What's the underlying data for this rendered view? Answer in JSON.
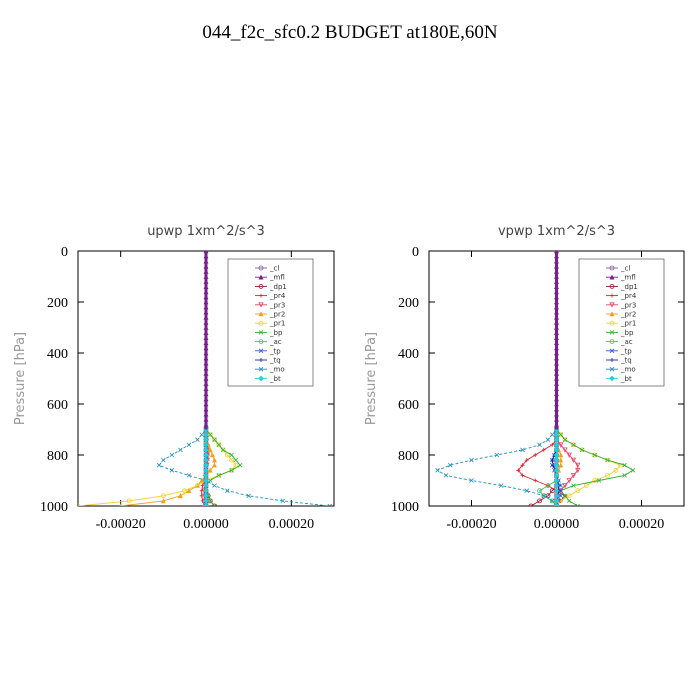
{
  "title": "044_f2c_sfc0.2  BUDGET at180E,60N",
  "series_styles": [
    {
      "name": "_cl",
      "color": "#8a5a9e",
      "marker": "circle"
    },
    {
      "name": "_mfl",
      "color": "#7a1f8f",
      "marker": "tri"
    },
    {
      "name": "_dp1",
      "color": "#a01030",
      "marker": "circle"
    },
    {
      "name": "_pr4",
      "color": "#e0202a",
      "marker": "plus"
    },
    {
      "name": "_pr3",
      "color": "#ee4466",
      "marker": "tridown"
    },
    {
      "name": "_pr2",
      "color": "#f0a020",
      "marker": "tri"
    },
    {
      "name": "_pr1",
      "color": "#f3d030",
      "marker": "circle"
    },
    {
      "name": "_bp",
      "color": "#30b030",
      "marker": "x"
    },
    {
      "name": "_ac",
      "color": "#40c060",
      "marker": "circle"
    },
    {
      "name": "_tp",
      "color": "#3060d0",
      "marker": "x"
    },
    {
      "name": "_tq",
      "color": "#2020a0",
      "marker": "plus"
    },
    {
      "name": "_mo",
      "color": "#2090c0",
      "marker": "x"
    },
    {
      "name": "_bt",
      "color": "#20d0e0",
      "marker": "diamond"
    }
  ],
  "chart_data": [
    {
      "type": "line",
      "title": "upwp   1xm^2/s^3",
      "ylabel": "Pressure [hPa]",
      "xlabel": "",
      "xlim": [
        -0.0003,
        0.0003
      ],
      "ylim": [
        1000,
        0
      ],
      "xticks": [
        -0.0002,
        0.0,
        0.0002
      ],
      "xtick_labels": [
        "-0.00020",
        "0.00000",
        "0.00020"
      ],
      "yticks": [
        0,
        200,
        400,
        600,
        800,
        1000
      ],
      "ytick_labels": [
        "0",
        "200",
        "400",
        "600",
        "800",
        "1000"
      ],
      "legend_position": "top-right",
      "y": [
        700,
        720,
        740,
        760,
        780,
        800,
        820,
        840,
        860,
        880,
        900,
        920,
        940,
        960,
        980,
        1000
      ],
      "series": [
        {
          "name": "_cl",
          "values": [
            0,
            0,
            0,
            0,
            0,
            0,
            0,
            0,
            0,
            0,
            0,
            0,
            0,
            0,
            0,
            0
          ]
        },
        {
          "name": "_mfl",
          "values": [
            0,
            0,
            0,
            0,
            0,
            0,
            0,
            0,
            0,
            0,
            0,
            0,
            0,
            0,
            0,
            0
          ]
        },
        {
          "name": "_dp1",
          "values": [
            0,
            0,
            0,
            0,
            0,
            0,
            0,
            0,
            0,
            0,
            0,
            0,
            0,
            5e-06,
            1e-05,
            2e-05
          ]
        },
        {
          "name": "_pr4",
          "values": [
            0,
            0,
            2e-06,
            4e-06,
            5e-06,
            5e-06,
            4e-06,
            2e-06,
            0,
            -3e-06,
            -5e-06,
            -8e-06,
            -1e-05,
            -1e-05,
            -8e-06,
            -4e-06
          ]
        },
        {
          "name": "_pr3",
          "values": [
            0,
            0,
            0,
            0,
            2e-06,
            3e-06,
            3e-06,
            2e-06,
            0,
            0,
            -2e-06,
            -3e-06,
            -4e-06,
            -3e-06,
            -2e-06,
            0
          ]
        },
        {
          "name": "_pr2",
          "values": [
            0,
            0,
            0,
            5e-06,
            1e-05,
            1.5e-05,
            2e-05,
            2e-05,
            1e-05,
            0,
            -1e-05,
            -2e-05,
            -4e-05,
            -6e-05,
            -0.0001,
            -0.0002
          ]
        },
        {
          "name": "_pr1",
          "values": [
            0,
            1e-05,
            2e-05,
            3e-05,
            4e-05,
            5e-05,
            6e-05,
            7e-05,
            6e-05,
            3e-05,
            0,
            -2e-05,
            -5e-05,
            -0.0001,
            -0.00018,
            -0.0003
          ]
        },
        {
          "name": "_bp",
          "values": [
            0,
            1e-05,
            2e-05,
            3e-05,
            4e-05,
            6e-05,
            7e-05,
            8e-05,
            6e-05,
            3e-05,
            1e-05,
            0,
            0,
            5e-06,
            1e-05,
            2e-05
          ]
        },
        {
          "name": "_ac",
          "values": [
            0,
            0,
            0,
            0,
            0,
            0,
            0,
            0,
            0,
            0,
            0,
            0,
            0,
            0,
            0,
            0
          ]
        },
        {
          "name": "_tp",
          "values": [
            0,
            0,
            0,
            0,
            0,
            0,
            0,
            0,
            0,
            0,
            0,
            0,
            0,
            0,
            0,
            0
          ]
        },
        {
          "name": "_tq",
          "values": [
            0,
            0,
            0,
            0,
            0,
            0,
            0,
            0,
            0,
            0,
            0,
            0,
            0,
            0,
            0,
            0
          ]
        },
        {
          "name": "_mo",
          "values": [
            0,
            -1e-05,
            -2e-05,
            -4e-05,
            -6e-05,
            -8e-05,
            -0.0001,
            -0.00011,
            -8e-05,
            -4e-05,
            0,
            2e-05,
            5e-05,
            0.0001,
            0.00018,
            0.00029
          ]
        },
        {
          "name": "_bt",
          "values": [
            0,
            0,
            0,
            0,
            0,
            0,
            0,
            0,
            0,
            0,
            0,
            0,
            0,
            0,
            0,
            0
          ]
        }
      ]
    },
    {
      "type": "line",
      "title": "vpwp   1xm^2/s^3",
      "ylabel": "Pressure [hPa]",
      "xlabel": "",
      "xlim": [
        -0.0003,
        0.0003
      ],
      "ylim": [
        1000,
        0
      ],
      "xticks": [
        -0.0002,
        0.0,
        0.0002
      ],
      "xtick_labels": [
        "-0.00020",
        "0.00000",
        "0.00020"
      ],
      "yticks": [
        0,
        200,
        400,
        600,
        800,
        1000
      ],
      "ytick_labels": [
        "0",
        "200",
        "400",
        "600",
        "800",
        "1000"
      ],
      "legend_position": "top-right",
      "y": [
        700,
        720,
        740,
        760,
        780,
        800,
        820,
        840,
        860,
        880,
        900,
        920,
        940,
        960,
        980,
        1000
      ],
      "series": [
        {
          "name": "_cl",
          "values": [
            0,
            0,
            0,
            0,
            0,
            0,
            0,
            0,
            0,
            0,
            0,
            0,
            0,
            0,
            0,
            0
          ]
        },
        {
          "name": "_mfl",
          "values": [
            0,
            0,
            0,
            0,
            0,
            0,
            0,
            0,
            0,
            0,
            0,
            0,
            0,
            0,
            0,
            0
          ]
        },
        {
          "name": "_dp1",
          "values": [
            0,
            0,
            0,
            0,
            0,
            0,
            0,
            0,
            0,
            0,
            0,
            0,
            -1e-05,
            -2e-05,
            -4e-05,
            -6e-05
          ]
        },
        {
          "name": "_pr4",
          "values": [
            0,
            0,
            0,
            -1e-05,
            -3e-05,
            -5e-05,
            -7e-05,
            -8e-05,
            -9e-05,
            -8e-05,
            -5e-05,
            -2e-05,
            0,
            2e-05,
            1e-05,
            0
          ]
        },
        {
          "name": "_pr3",
          "values": [
            0,
            0,
            0,
            1e-05,
            2e-05,
            3e-05,
            4e-05,
            5e-05,
            5e-05,
            4e-05,
            3e-05,
            2e-05,
            1e-05,
            0,
            0,
            0
          ]
        },
        {
          "name": "_pr2",
          "values": [
            0,
            0,
            0,
            0,
            5e-06,
            1e-05,
            1e-05,
            1e-05,
            5e-06,
            0,
            0,
            0,
            0,
            0,
            0,
            0
          ]
        },
        {
          "name": "_pr1",
          "values": [
            0,
            1e-05,
            2e-05,
            4e-05,
            6e-05,
            9e-05,
            0.00012,
            0.00015,
            0.00014,
            0.00012,
            9e-05,
            7e-05,
            5e-05,
            3e-05,
            1e-05,
            0
          ]
        },
        {
          "name": "_bp",
          "values": [
            0,
            1e-05,
            2e-05,
            4e-05,
            6e-05,
            9e-05,
            0.00012,
            0.00016,
            0.00018,
            0.00016,
            0.0001,
            4e-05,
            1e-05,
            2e-05,
            3e-05,
            5e-05
          ]
        },
        {
          "name": "_ac",
          "values": [
            0,
            0,
            0,
            0,
            0,
            0,
            0,
            0,
            0,
            0,
            0,
            -2e-05,
            -4e-05,
            -3e-05,
            -1e-05,
            0
          ]
        },
        {
          "name": "_tp",
          "values": [
            0,
            0,
            0,
            0,
            0,
            -5e-06,
            -1e-05,
            -1e-05,
            -5e-06,
            0,
            5e-06,
            1e-05,
            1e-05,
            1e-05,
            5e-06,
            0
          ]
        },
        {
          "name": "_tq",
          "values": [
            0,
            0,
            0,
            0,
            0,
            -5e-06,
            -1e-05,
            -8e-06,
            -3e-06,
            0,
            3e-06,
            5e-06,
            5e-06,
            3e-06,
            0,
            0
          ]
        },
        {
          "name": "_mo",
          "values": [
            0,
            -1e-05,
            -2e-05,
            -4e-05,
            -8e-05,
            -0.00014,
            -0.0002,
            -0.00025,
            -0.00028,
            -0.00026,
            -0.0002,
            -0.00013,
            -7e-05,
            -3e-05,
            -1e-05,
            0
          ]
        },
        {
          "name": "_bt",
          "values": [
            0,
            0,
            0,
            0,
            0,
            0,
            0,
            0,
            0,
            0,
            0,
            0,
            0,
            0,
            0,
            0
          ]
        }
      ]
    }
  ]
}
